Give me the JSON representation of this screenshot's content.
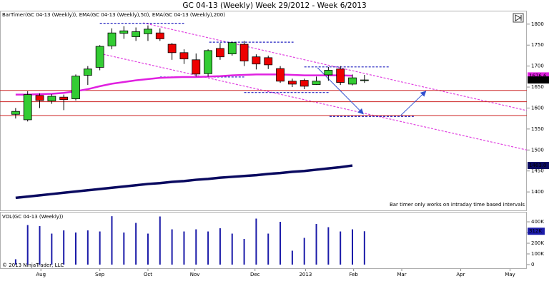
{
  "chart_data": [
    {
      "type": "candlestick",
      "title": "GC 04-13 (Weekly)  Week 29/2012 - Week 6/2013",
      "indicator_label": "BarTimer(GC 04-13 (Weekly)), EMA(GC 04-13 (Weekly),50), EMA(GC 04-13 (Weekly),200)",
      "note": "Bar timer only works on intraday time based intervals",
      "copyright": "© 2013 NinjaTrader, LLC",
      "x": [
        0,
        1,
        2,
        3,
        4,
        5,
        6,
        7,
        8,
        9,
        10,
        11,
        12,
        13,
        14,
        15,
        16,
        17,
        18,
        19,
        20,
        21,
        22,
        23,
        24,
        25,
        26,
        27,
        28,
        29
      ],
      "open": [
        1585,
        1572,
        1630,
        1617,
        1626,
        1622,
        1678,
        1697,
        1748,
        1778,
        1770,
        1777,
        1779,
        1752,
        1732,
        1715,
        1682,
        1742,
        1729,
        1752,
        1722,
        1720,
        1694,
        1664,
        1666,
        1656,
        1679,
        1693,
        1657,
        1667
      ],
      "high": [
        1600,
        1640,
        1635,
        1633,
        1632,
        1680,
        1700,
        1750,
        1790,
        1795,
        1792,
        1797,
        1790,
        1755,
        1740,
        1730,
        1740,
        1755,
        1758,
        1760,
        1728,
        1725,
        1700,
        1670,
        1670,
        1675,
        1698,
        1700,
        1680,
        1679
      ],
      "low": [
        1575,
        1568,
        1600,
        1610,
        1595,
        1618,
        1655,
        1690,
        1740,
        1765,
        1760,
        1760,
        1760,
        1715,
        1705,
        1675,
        1675,
        1715,
        1725,
        1700,
        1692,
        1693,
        1660,
        1650,
        1645,
        1655,
        1665,
        1655,
        1654,
        1660
      ],
      "close": [
        1592,
        1632,
        1618,
        1628,
        1620,
        1676,
        1693,
        1747,
        1779,
        1784,
        1782,
        1788,
        1765,
        1732,
        1717,
        1681,
        1737,
        1722,
        1756,
        1712,
        1705,
        1703,
        1664,
        1657,
        1652,
        1664,
        1690,
        1661,
        1672,
        1667
      ],
      "up_color": "#33cc33",
      "down_color": "#ee0000",
      "series": [
        {
          "color": "#e020e0",
          "values": [
            1632,
            1632,
            1633,
            1634,
            1636,
            1640,
            1645,
            1652,
            1658,
            1662,
            1666,
            1669,
            1672,
            1673,
            1674,
            1674,
            1675,
            1676,
            1678,
            1679,
            1680,
            1680,
            1680,
            1679,
            1678,
            1678,
            1678,
            1678,
            1677,
            null
          ]
        },
        {
          "color": "#0a0a60",
          "values": [
            1386,
            1389,
            1392,
            1395,
            1398,
            1401,
            1404,
            1407,
            1410,
            1413,
            1416,
            1419,
            1421,
            1424,
            1426,
            1429,
            1431,
            1434,
            1436,
            1438,
            1440,
            1443,
            1445,
            1448,
            1450,
            1453,
            1456,
            1459,
            1463,
            null
          ]
        }
      ],
      "xlim": [
        -1.3,
        42.5
      ],
      "xticks": [
        {
          "value": 2.1,
          "label": "Aug"
        },
        {
          "value": 7.0,
          "label": "Sep"
        },
        {
          "value": 11.0,
          "label": "Oct"
        },
        {
          "value": 14.9,
          "label": "Nov"
        },
        {
          "value": 19.9,
          "label": "Dec"
        },
        {
          "value": 24.1,
          "label": "2013"
        },
        {
          "value": 28.1,
          "label": "Feb"
        },
        {
          "value": 32.1,
          "label": "Mar"
        },
        {
          "value": 37.0,
          "label": "Apr"
        },
        {
          "value": 41.1,
          "label": "May"
        }
      ],
      "ylim": [
        1356,
        1832
      ],
      "yticks": [
        1400,
        1450,
        1500,
        1550,
        1600,
        1650,
        1700,
        1750,
        1800
      ],
      "price_markers": [
        {
          "value": 1676.6,
          "color": "#e020e0"
        },
        {
          "value": 1666.9,
          "color": "#000000"
        },
        {
          "value": 1463,
          "label": "1463.0",
          "color": "#0a0a60"
        }
      ],
      "drawings": [
        {
          "style": "dash",
          "color": "#e040e0",
          "x": [
            10.6,
            42.5
          ],
          "y": [
            1803,
            1594
          ]
        },
        {
          "style": "dash",
          "color": "#e040e0",
          "x": [
            7.0,
            42.5
          ],
          "y": [
            1730,
            1500
          ]
        },
        {
          "style": "dash",
          "color": "#2020c0",
          "x": [
            7.0,
            14.0
          ],
          "y": [
            1802,
            1802
          ]
        },
        {
          "style": "dash",
          "color": "#2020c0",
          "x": [
            16.1,
            23.1
          ],
          "y": [
            1757,
            1757
          ]
        },
        {
          "style": "dash",
          "color": "#2020c0",
          "x": [
            12.0,
            19.0
          ],
          "y": [
            1674,
            1674
          ]
        },
        {
          "style": "dash",
          "color": "#2020c0",
          "x": [
            19.0,
            26.1
          ],
          "y": [
            1637,
            1637
          ]
        },
        {
          "style": "dash",
          "color": "#2020c0",
          "x": [
            24.0,
            31.1
          ],
          "y": [
            1698,
            1698
          ]
        },
        {
          "style": "dash",
          "color": "#2020c0",
          "x": [
            26.1,
            33.1
          ],
          "y": [
            1580,
            1580
          ]
        },
        {
          "style": "solid",
          "color": "#cc2020",
          "x": [
            -1.3,
            42.5
          ],
          "y": [
            1642,
            1642
          ]
        },
        {
          "style": "solid",
          "color": "#cc2020",
          "x": [
            -1.3,
            42.5
          ],
          "y": [
            1615,
            1615
          ]
        },
        {
          "style": "solid",
          "color": "#cc2020",
          "x": [
            -1.3,
            42.5
          ],
          "y": [
            1582,
            1582
          ]
        },
        {
          "style": "arrow",
          "color": "#3050d0",
          "x": [
            25.1,
            28.9
          ],
          "y": [
            1696,
            1586
          ]
        },
        {
          "style": "arrow",
          "color": "#3050d0",
          "x": [
            32.0,
            34.1
          ],
          "y": [
            1582,
            1640
          ]
        }
      ]
    },
    {
      "type": "bar",
      "title": "VOL(GC 04-13 (Weekly))",
      "color": "#1a1aa8",
      "values": [
        50000,
        370000,
        360000,
        290000,
        320000,
        300000,
        320000,
        310000,
        453000,
        300000,
        390000,
        290000,
        450000,
        330000,
        310000,
        330000,
        310000,
        340000,
        290000,
        240000,
        430000,
        290000,
        400000,
        130000,
        250000,
        380000,
        350000,
        310000,
        330000,
        312000
      ],
      "value_labels": [
        null,
        null,
        null,
        null,
        null,
        null,
        null,
        null,
        null,
        null,
        null,
        null,
        null,
        null,
        null,
        null,
        null,
        null,
        null,
        null,
        null,
        null,
        null,
        null,
        null,
        null,
        null,
        null,
        null,
        "312K"
      ],
      "ylim": [
        0,
        487000
      ],
      "yticks": [
        0,
        {
          "value": 100000,
          "label": "100K"
        },
        {
          "value": 200000,
          "label": "200K"
        },
        {
          "value": 300000,
          "label": "300K"
        },
        {
          "value": 400000,
          "label": "400K"
        }
      ]
    }
  ]
}
